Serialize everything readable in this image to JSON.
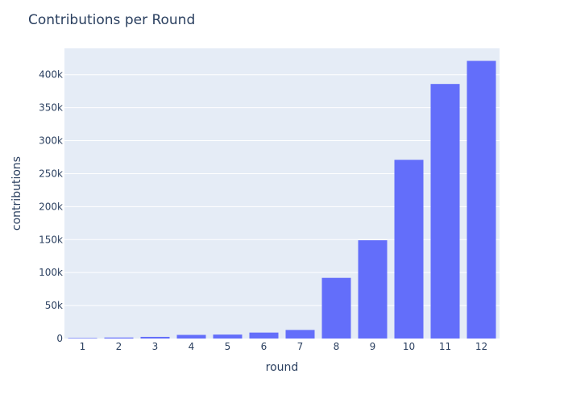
{
  "chart_data": {
    "type": "bar",
    "title": "Contributions per Round",
    "xlabel": "round",
    "ylabel": "contributions",
    "categories": [
      "1",
      "2",
      "3",
      "4",
      "5",
      "6",
      "7",
      "8",
      "9",
      "10",
      "11",
      "12"
    ],
    "values": [
      800,
      1500,
      2500,
      5500,
      6000,
      9000,
      13000,
      92000,
      149000,
      271000,
      386000,
      421000
    ],
    "ylim": [
      0,
      440000
    ],
    "yticks": [
      0,
      50000,
      100000,
      150000,
      200000,
      250000,
      300000,
      350000,
      400000
    ],
    "ytick_labels": [
      "0",
      "50k",
      "100k",
      "150k",
      "200k",
      "250k",
      "300k",
      "350k",
      "400k"
    ],
    "grid": true,
    "colors": {
      "bar": "#636efa",
      "plot_bg": "#e5ecf6",
      "grid": "#ffffff",
      "text": "#2a3f5f"
    }
  }
}
